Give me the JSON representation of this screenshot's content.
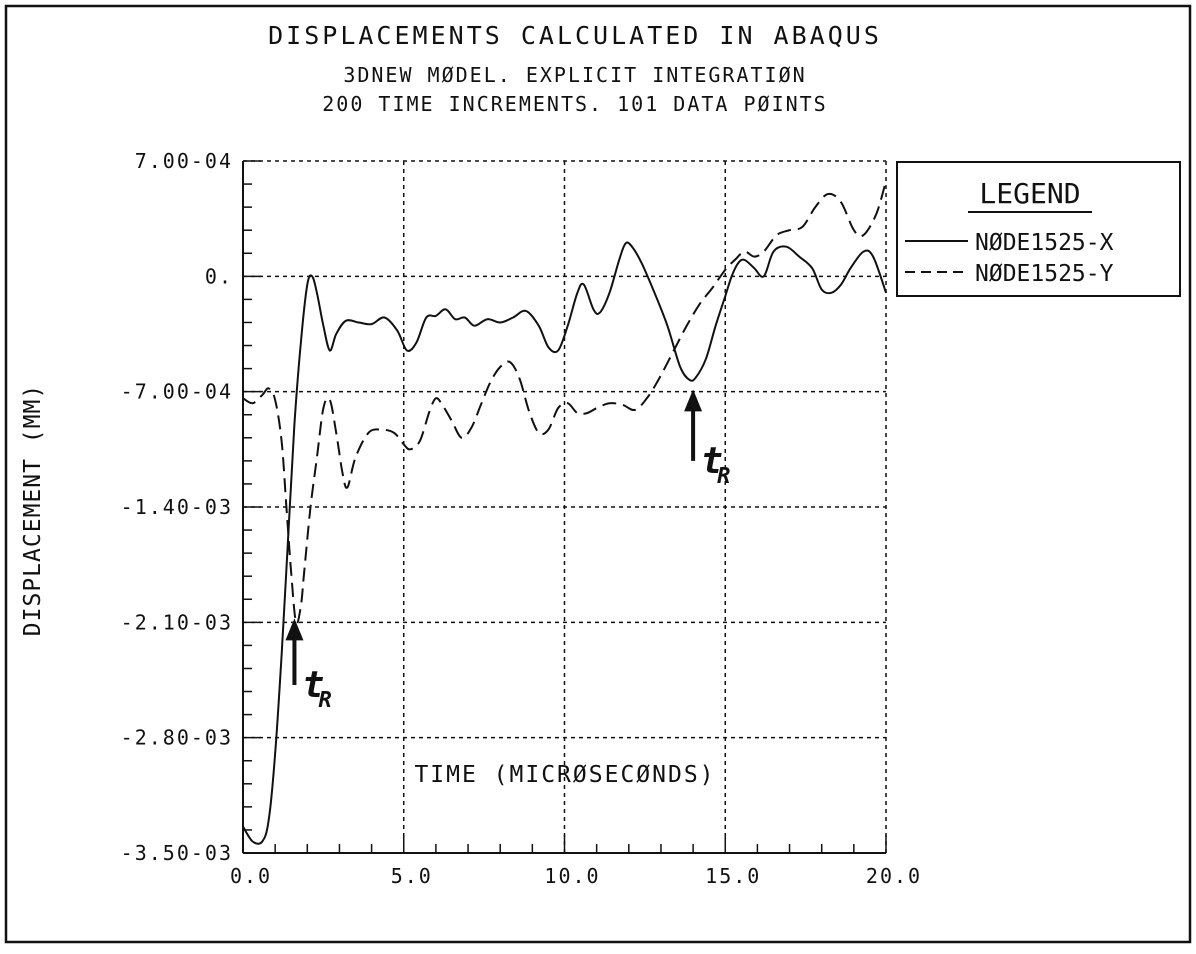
{
  "chart_data": {
    "type": "line",
    "title": "DISPLACEMENTS CALCULATED IN ABAQUS",
    "subtitle_lines": [
      "3DNEW MØDEL.  EXPLICIT INTEGRATIØN",
      "200 TIME INCREMENTS.  101 DATA PØINTS"
    ],
    "xlabel": "TIME (MICRØSECØNDS)",
    "ylabel": "DISPLACEMENT (MM)",
    "xlim": [
      0,
      20
    ],
    "ylim": [
      -0.0035,
      0.0007
    ],
    "xticks": [
      0,
      5,
      10,
      15,
      20
    ],
    "xtick_labels": [
      "0.0",
      "5.0",
      "10.0",
      "15.0",
      "20.0"
    ],
    "yticks": [
      0.0007,
      0,
      -0.0007,
      -0.0014,
      -0.0021,
      -0.0028,
      -0.0035
    ],
    "ytick_labels": [
      "7.00-04",
      "0.",
      "-7.00-04",
      "-1.40-03",
      "-2.10-03",
      "-2.80-03",
      "-3.50-03"
    ],
    "grid": true,
    "legend": {
      "title": "LEGEND",
      "position": "right"
    },
    "series": [
      {
        "name": "NØDE1525-X",
        "style": "solid",
        "points": [
          [
            0,
            -0.00334
          ],
          [
            0.3,
            -0.00343
          ],
          [
            0.6,
            -0.00343
          ],
          [
            0.8,
            -0.0033
          ],
          [
            1.0,
            -0.0029
          ],
          [
            1.2,
            -0.0023
          ],
          [
            1.4,
            -0.0016
          ],
          [
            1.6,
            -0.0009
          ],
          [
            1.8,
            -0.0004
          ],
          [
            2.0,
            -5e-05
          ],
          [
            2.15,
            0.0
          ],
          [
            2.3,
            -0.0001
          ],
          [
            2.5,
            -0.0003
          ],
          [
            2.7,
            -0.00045
          ],
          [
            2.9,
            -0.00035
          ],
          [
            3.2,
            -0.00027
          ],
          [
            3.6,
            -0.00028
          ],
          [
            4.0,
            -0.00029
          ],
          [
            4.4,
            -0.00025
          ],
          [
            4.8,
            -0.00033
          ],
          [
            5.1,
            -0.00045
          ],
          [
            5.4,
            -0.0004
          ],
          [
            5.7,
            -0.00025
          ],
          [
            6.0,
            -0.00024
          ],
          [
            6.3,
            -0.0002
          ],
          [
            6.6,
            -0.00026
          ],
          [
            6.9,
            -0.00025
          ],
          [
            7.2,
            -0.0003
          ],
          [
            7.6,
            -0.00026
          ],
          [
            8.0,
            -0.00028
          ],
          [
            8.4,
            -0.00025
          ],
          [
            8.8,
            -0.00021
          ],
          [
            9.2,
            -0.0003
          ],
          [
            9.5,
            -0.00043
          ],
          [
            9.8,
            -0.00045
          ],
          [
            10.1,
            -0.0003
          ],
          [
            10.4,
            -0.0001
          ],
          [
            10.6,
            -5e-05
          ],
          [
            10.9,
            -0.0002
          ],
          [
            11.1,
            -0.00022
          ],
          [
            11.4,
            -0.0001
          ],
          [
            11.7,
            0.0001
          ],
          [
            11.9,
            0.0002
          ],
          [
            12.1,
            0.00018
          ],
          [
            12.4,
            8e-05
          ],
          [
            12.8,
            -0.0001
          ],
          [
            13.2,
            -0.0003
          ],
          [
            13.6,
            -0.00055
          ],
          [
            13.9,
            -0.00063
          ],
          [
            14.1,
            -0.00061
          ],
          [
            14.4,
            -0.0005
          ],
          [
            14.7,
            -0.0003
          ],
          [
            15.0,
            -0.00012
          ],
          [
            15.2,
            0.0
          ],
          [
            15.4,
            8e-05
          ],
          [
            15.6,
            0.0001
          ],
          [
            15.9,
            5e-05
          ],
          [
            16.2,
            0.0
          ],
          [
            16.5,
            0.00015
          ],
          [
            16.9,
            0.00018
          ],
          [
            17.3,
            0.00012
          ],
          [
            17.7,
            5e-05
          ],
          [
            18.0,
            -8e-05
          ],
          [
            18.3,
            -0.0001
          ],
          [
            18.6,
            -5e-05
          ],
          [
            18.9,
            5e-05
          ],
          [
            19.3,
            0.00015
          ],
          [
            19.6,
            0.00012
          ],
          [
            20.0,
            -0.0001
          ]
        ]
      },
      {
        "name": "NØDE1525-Y",
        "style": "dashed",
        "points": [
          [
            0,
            -0.00074
          ],
          [
            0.3,
            -0.00077
          ],
          [
            0.6,
            -0.00072
          ],
          [
            0.8,
            -0.00068
          ],
          [
            1.0,
            -0.00075
          ],
          [
            1.2,
            -0.001
          ],
          [
            1.35,
            -0.0014
          ],
          [
            1.5,
            -0.0018
          ],
          [
            1.65,
            -0.0021
          ],
          [
            1.8,
            -0.002
          ],
          [
            1.9,
            -0.0018
          ],
          [
            2.1,
            -0.0014
          ],
          [
            2.3,
            -0.0011
          ],
          [
            2.5,
            -0.0008
          ],
          [
            2.7,
            -0.00075
          ],
          [
            2.9,
            -0.00095
          ],
          [
            3.1,
            -0.0012
          ],
          [
            3.25,
            -0.00128
          ],
          [
            3.5,
            -0.0011
          ],
          [
            3.9,
            -0.00095
          ],
          [
            4.3,
            -0.00093
          ],
          [
            4.7,
            -0.00095
          ],
          [
            5.0,
            -0.00102
          ],
          [
            5.2,
            -0.00105
          ],
          [
            5.5,
            -0.001
          ],
          [
            5.8,
            -0.00082
          ],
          [
            6.0,
            -0.00074
          ],
          [
            6.2,
            -0.00078
          ],
          [
            6.5,
            -0.00088
          ],
          [
            6.8,
            -0.00098
          ],
          [
            7.1,
            -0.00092
          ],
          [
            7.4,
            -0.00078
          ],
          [
            7.7,
            -0.00064
          ],
          [
            8.0,
            -0.00055
          ],
          [
            8.3,
            -0.00052
          ],
          [
            8.6,
            -0.00062
          ],
          [
            8.9,
            -0.00082
          ],
          [
            9.2,
            -0.00095
          ],
          [
            9.5,
            -0.00093
          ],
          [
            9.8,
            -0.0008
          ],
          [
            10.1,
            -0.00077
          ],
          [
            10.4,
            -0.00083
          ],
          [
            10.7,
            -0.00083
          ],
          [
            11.0,
            -0.0008
          ],
          [
            11.4,
            -0.00077
          ],
          [
            11.8,
            -0.00078
          ],
          [
            12.2,
            -0.00081
          ],
          [
            12.6,
            -0.00073
          ],
          [
            13.0,
            -0.0006
          ],
          [
            13.4,
            -0.00045
          ],
          [
            13.8,
            -0.0003
          ],
          [
            14.2,
            -0.00017
          ],
          [
            14.6,
            -7e-05
          ],
          [
            15.0,
            4e-05
          ],
          [
            15.3,
            0.0001
          ],
          [
            15.6,
            0.00015
          ],
          [
            15.9,
            0.00012
          ],
          [
            16.2,
            0.00015
          ],
          [
            16.6,
            0.00025
          ],
          [
            17.0,
            0.00028
          ],
          [
            17.4,
            0.0003
          ],
          [
            17.8,
            0.00042
          ],
          [
            18.2,
            0.0005
          ],
          [
            18.6,
            0.00045
          ],
          [
            19.0,
            0.00028
          ],
          [
            19.3,
            0.00025
          ],
          [
            19.7,
            0.00038
          ],
          [
            20.0,
            0.00058
          ]
        ]
      }
    ],
    "annotations": [
      {
        "text": "t",
        "subscript": "R",
        "arrow_to": [
          1.6,
          -0.0021
        ],
        "from": [
          1.6,
          -0.00248
        ]
      },
      {
        "text": "t",
        "subscript": "R",
        "arrow_to": [
          14.0,
          -0.00071
        ],
        "from": [
          14.0,
          -0.00112
        ]
      }
    ]
  },
  "colors": {
    "ink": "#111111",
    "background": "#ffffff"
  }
}
